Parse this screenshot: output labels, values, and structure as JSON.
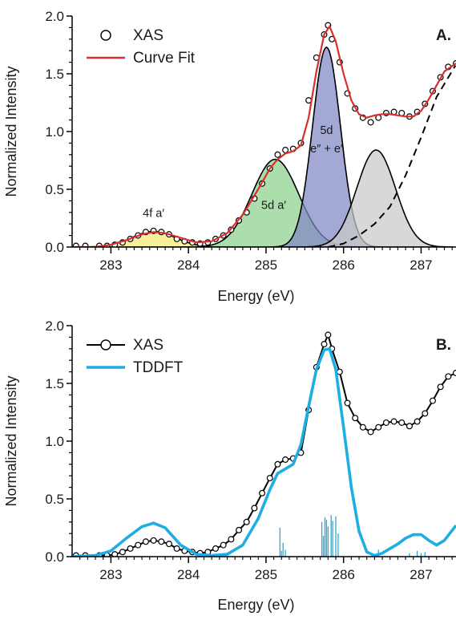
{
  "chart_data": [
    {
      "type": "line",
      "panel_label": "A.",
      "xlabel": "Energy (eV)",
      "ylabel": "Normalized Intensity",
      "xlim": [
        282.5,
        287.45
      ],
      "ylim": [
        0,
        2.0
      ],
      "x_ticks": [
        "283",
        "284",
        "285",
        "286",
        "287"
      ],
      "y_ticks": [
        "0.0",
        "0.5",
        "1.0",
        "1.5",
        "2.0"
      ],
      "legend": {
        "position": "top-left",
        "entries": [
          "XAS",
          "Curve Fit"
        ]
      },
      "colors": {
        "fit": "#d62f2f",
        "xas": "#000000"
      },
      "peaks": [
        {
          "label": "4f a′",
          "center": 283.55,
          "height": 0.135,
          "width": 0.28,
          "color": "#f5ea74"
        },
        {
          "label": "5d a′",
          "center": 285.12,
          "height": 0.76,
          "width": 0.3,
          "color": "#8cd08c"
        },
        {
          "label": "5d",
          "label2": "e″ + e′",
          "center": 285.78,
          "height": 1.73,
          "width": 0.18,
          "color": "#7f86c5"
        },
        {
          "label": "",
          "center": 286.42,
          "height": 0.84,
          "width": 0.25,
          "color": "#c9c9c9"
        }
      ],
      "step_background": {
        "style": "dashed",
        "points": [
          [
            285.8,
            0.0
          ],
          [
            286.0,
            0.03
          ],
          [
            286.2,
            0.1
          ],
          [
            286.4,
            0.2
          ],
          [
            286.6,
            0.35
          ],
          [
            286.8,
            0.62
          ],
          [
            287.0,
            0.95
          ],
          [
            287.2,
            1.3
          ],
          [
            287.45,
            1.58
          ]
        ]
      },
      "series": [
        {
          "name": "XAS",
          "style": "markers",
          "x": [
            282.55,
            282.67,
            282.85,
            282.95,
            283.05,
            283.15,
            283.25,
            283.35,
            283.45,
            283.55,
            283.65,
            283.75,
            283.85,
            283.95,
            284.05,
            284.15,
            284.25,
            284.35,
            284.45,
            284.55,
            284.65,
            284.75,
            284.85,
            284.95,
            285.05,
            285.15,
            285.25,
            285.35,
            285.45,
            285.55,
            285.65,
            285.75,
            285.8,
            285.85,
            285.95,
            286.05,
            286.15,
            286.25,
            286.35,
            286.45,
            286.55,
            286.65,
            286.75,
            286.85,
            286.95,
            287.05,
            287.15,
            287.25,
            287.35,
            287.45
          ],
          "y": [
            0.01,
            0.01,
            0.01,
            0.01,
            0.02,
            0.04,
            0.07,
            0.1,
            0.13,
            0.14,
            0.13,
            0.11,
            0.07,
            0.05,
            0.04,
            0.03,
            0.04,
            0.07,
            0.1,
            0.15,
            0.23,
            0.3,
            0.42,
            0.55,
            0.68,
            0.8,
            0.84,
            0.85,
            0.9,
            1.27,
            1.64,
            1.84,
            1.92,
            1.8,
            1.6,
            1.33,
            1.2,
            1.12,
            1.08,
            1.12,
            1.16,
            1.17,
            1.16,
            1.13,
            1.17,
            1.24,
            1.35,
            1.47,
            1.56,
            1.59
          ]
        },
        {
          "name": "Curve Fit",
          "style": "line",
          "x": [
            282.5,
            282.8,
            283.0,
            283.2,
            283.4,
            283.55,
            283.7,
            283.9,
            284.1,
            284.3,
            284.5,
            284.7,
            284.9,
            285.05,
            285.15,
            285.25,
            285.35,
            285.45,
            285.55,
            285.65,
            285.75,
            285.82,
            285.9,
            286.0,
            286.1,
            286.2,
            286.3,
            286.4,
            286.5,
            286.6,
            286.7,
            286.8,
            286.9,
            287.0,
            287.1,
            287.2,
            287.3,
            287.45
          ],
          "y": [
            0.0,
            0.0,
            0.02,
            0.06,
            0.11,
            0.13,
            0.12,
            0.08,
            0.04,
            0.05,
            0.12,
            0.28,
            0.5,
            0.68,
            0.76,
            0.81,
            0.83,
            0.88,
            1.12,
            1.52,
            1.84,
            1.91,
            1.78,
            1.5,
            1.27,
            1.15,
            1.12,
            1.14,
            1.15,
            1.15,
            1.14,
            1.13,
            1.13,
            1.18,
            1.28,
            1.4,
            1.52,
            1.59
          ]
        }
      ]
    },
    {
      "type": "line",
      "panel_label": "B.",
      "xlabel": "Energy (eV)",
      "ylabel": "Normalized Intensity",
      "xlim": [
        282.5,
        287.45
      ],
      "ylim": [
        0,
        2.0
      ],
      "x_ticks": [
        "283",
        "284",
        "285",
        "286",
        "287"
      ],
      "y_ticks": [
        "0.0",
        "0.5",
        "1.0",
        "1.5",
        "2.0"
      ],
      "legend": {
        "position": "top-left",
        "entries": [
          "XAS",
          "TDDFT"
        ]
      },
      "colors": {
        "tddft": "#1eaee4",
        "xas": "#000000"
      },
      "series": [
        {
          "name": "XAS",
          "style": "line+markers",
          "x": [
            282.55,
            282.67,
            282.85,
            282.95,
            283.05,
            283.15,
            283.25,
            283.35,
            283.45,
            283.55,
            283.65,
            283.75,
            283.85,
            283.95,
            284.05,
            284.15,
            284.25,
            284.35,
            284.45,
            284.55,
            284.65,
            284.75,
            284.85,
            284.95,
            285.05,
            285.15,
            285.25,
            285.35,
            285.45,
            285.55,
            285.65,
            285.75,
            285.8,
            285.85,
            285.95,
            286.05,
            286.15,
            286.25,
            286.35,
            286.45,
            286.55,
            286.65,
            286.75,
            286.85,
            286.95,
            287.05,
            287.15,
            287.25,
            287.35,
            287.45
          ],
          "y": [
            0.01,
            0.01,
            0.01,
            0.01,
            0.02,
            0.04,
            0.07,
            0.1,
            0.13,
            0.14,
            0.13,
            0.11,
            0.07,
            0.05,
            0.04,
            0.03,
            0.04,
            0.07,
            0.1,
            0.15,
            0.23,
            0.3,
            0.42,
            0.55,
            0.68,
            0.8,
            0.84,
            0.85,
            0.9,
            1.27,
            1.64,
            1.84,
            1.92,
            1.8,
            1.6,
            1.33,
            1.2,
            1.12,
            1.08,
            1.12,
            1.16,
            1.17,
            1.16,
            1.13,
            1.17,
            1.24,
            1.35,
            1.47,
            1.56,
            1.59
          ]
        },
        {
          "name": "TDDFT",
          "style": "line",
          "x": [
            282.5,
            282.8,
            283.0,
            283.2,
            283.4,
            283.55,
            283.7,
            283.9,
            284.1,
            284.3,
            284.5,
            284.7,
            284.9,
            285.05,
            285.15,
            285.25,
            285.35,
            285.45,
            285.55,
            285.65,
            285.75,
            285.82,
            285.9,
            286.0,
            286.1,
            286.2,
            286.3,
            286.4,
            286.5,
            286.6,
            286.7,
            286.8,
            286.9,
            287.0,
            287.1,
            287.2,
            287.3,
            287.45
          ],
          "y": [
            0.0,
            0.01,
            0.05,
            0.16,
            0.26,
            0.29,
            0.25,
            0.1,
            0.02,
            0.01,
            0.02,
            0.1,
            0.33,
            0.58,
            0.72,
            0.76,
            0.8,
            0.97,
            1.3,
            1.62,
            1.79,
            1.8,
            1.62,
            1.12,
            0.6,
            0.22,
            0.04,
            0.01,
            0.03,
            0.07,
            0.11,
            0.16,
            0.19,
            0.19,
            0.14,
            0.1,
            0.14,
            0.27
          ]
        }
      ],
      "stick_spectrum": {
        "x": [
          285.18,
          285.2,
          285.22,
          285.25,
          285.72,
          285.74,
          285.76,
          285.78,
          285.8,
          285.84,
          285.86,
          285.9,
          285.93,
          286.45,
          286.85,
          286.95,
          287.0,
          287.05
        ],
        "y": [
          0.25,
          0.05,
          0.12,
          0.06,
          0.3,
          0.18,
          0.34,
          0.32,
          0.26,
          0.36,
          0.31,
          0.35,
          0.2,
          0.06,
          0.03,
          0.05,
          0.03,
          0.04
        ]
      }
    }
  ]
}
